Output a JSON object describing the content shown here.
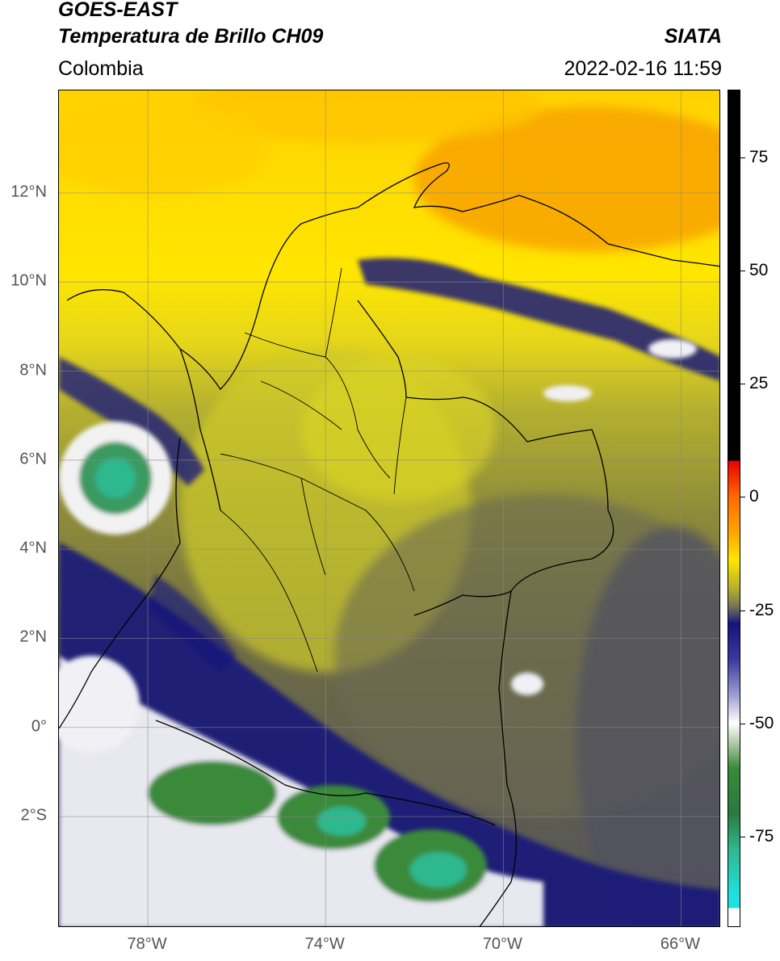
{
  "header": {
    "line1": "GOES-EAST",
    "line2": "Temperatura de Brillo CH09",
    "agency": "SIATA",
    "region": "Colombia",
    "datetime": "2022-02-16 11:59"
  },
  "map": {
    "lat_range": [
      -4.5,
      14.3
    ],
    "lon_range": [
      -80,
      -65.1
    ],
    "lat_ticks": [
      {
        "value": 12,
        "label": "12°N"
      },
      {
        "value": 10,
        "label": "10°N"
      },
      {
        "value": 8,
        "label": "8°N"
      },
      {
        "value": 6,
        "label": "6°N"
      },
      {
        "value": 4,
        "label": "4°N"
      },
      {
        "value": 2,
        "label": "2°N"
      },
      {
        "value": 0,
        "label": "0°"
      },
      {
        "value": -2,
        "label": "2°S"
      }
    ],
    "lon_ticks": [
      {
        "value": -78,
        "label": "78°W"
      },
      {
        "value": -74,
        "label": "74°W"
      },
      {
        "value": -70,
        "label": "70°W"
      },
      {
        "value": -66,
        "label": "66°W"
      }
    ],
    "grid": true,
    "colors": {
      "warm_orange": "#f8a200",
      "yellow": "#ffe600",
      "olive": "#9c9c2c",
      "gray": "#5b5b5b",
      "navy": "#1a1a7a",
      "white": "#f4f4f4",
      "green": "#3a8a3a",
      "teal": "#2fb88e"
    }
  },
  "colorbar": {
    "range": [
      -95,
      90
    ],
    "ticks": [
      {
        "value": 75,
        "label": "75"
      },
      {
        "value": 50,
        "label": "50"
      },
      {
        "value": 25,
        "label": "25"
      },
      {
        "value": 0,
        "label": "0"
      },
      {
        "value": -25,
        "label": "-25"
      },
      {
        "value": -50,
        "label": "-50"
      },
      {
        "value": -75,
        "label": "-75"
      }
    ]
  }
}
